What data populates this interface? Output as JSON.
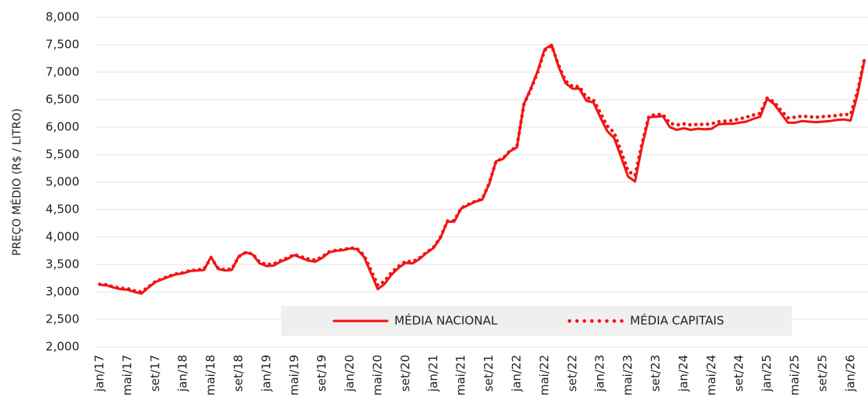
{
  "chart_data": {
    "type": "line",
    "ylabel": "PREÇO MÉDIO (R$ / LITRO)",
    "categories": [
      "jan/17",
      null,
      null,
      null,
      "mai/17",
      null,
      null,
      null,
      "set/17",
      null,
      null,
      null,
      "jan/18",
      null,
      null,
      null,
      "mai/18",
      null,
      null,
      null,
      "set/18",
      null,
      null,
      null,
      "jan/19",
      null,
      null,
      null,
      "mai/19",
      null,
      null,
      null,
      "set/19",
      null,
      null,
      null,
      "jan/20",
      null,
      null,
      null,
      "mai/20",
      null,
      null,
      null,
      "set/20",
      null,
      null,
      null,
      "jan/21",
      null,
      null,
      null,
      "mai/21",
      null,
      null,
      null,
      "set/21",
      null,
      null,
      null,
      "jan/22",
      null,
      null,
      null,
      "mai/22",
      null,
      null,
      null,
      "set/22",
      null,
      null,
      null,
      "jan/23",
      null,
      null,
      null,
      "mai/23",
      null,
      null,
      null,
      "set/23",
      null,
      null,
      null,
      "jan/24",
      null,
      null,
      null,
      "mai/24",
      null,
      null,
      null,
      "set/24",
      null,
      null,
      null,
      "jan/25",
      null,
      null,
      null,
      "mai/25",
      null,
      null,
      null,
      "set/25",
      null,
      null,
      null,
      "jan/26",
      null,
      null
    ],
    "series": [
      {
        "name": "MÉDIA NACIONAL",
        "color": "#f21414",
        "style": "solid",
        "values": [
          3130,
          3120,
          3080,
          3050,
          3040,
          3000,
          2970,
          3080,
          3180,
          3230,
          3280,
          3320,
          3340,
          3380,
          3390,
          3400,
          3640,
          3420,
          3390,
          3400,
          3650,
          3720,
          3680,
          3520,
          3470,
          3480,
          3550,
          3600,
          3670,
          3620,
          3570,
          3550,
          3620,
          3720,
          3750,
          3760,
          3790,
          3780,
          3640,
          3350,
          3050,
          3150,
          3320,
          3440,
          3530,
          3520,
          3600,
          3710,
          3800,
          3980,
          4280,
          4280,
          4520,
          4580,
          4640,
          4680,
          4960,
          5380,
          5420,
          5560,
          5630,
          6420,
          6700,
          7020,
          7420,
          7500,
          7100,
          6800,
          6700,
          6700,
          6480,
          6450,
          6180,
          5930,
          5800,
          5450,
          5100,
          5010,
          5650,
          6180,
          6190,
          6200,
          6000,
          5950,
          5980,
          5950,
          5970,
          5960,
          5970,
          6050,
          6060,
          6060,
          6080,
          6100,
          6150,
          6190,
          6520,
          6420,
          6250,
          6080,
          6080,
          6110,
          6100,
          6090,
          6100,
          6110,
          6130,
          6140,
          6120,
          6600,
          7220
        ]
      },
      {
        "name": "MÉDIA CAPITAIS",
        "color": "#f21414",
        "style": "dotted",
        "values": [
          3140,
          3130,
          3090,
          3070,
          3060,
          3020,
          3000,
          3090,
          3190,
          3240,
          3290,
          3330,
          3350,
          3390,
          3400,
          3420,
          3620,
          3440,
          3400,
          3420,
          3640,
          3720,
          3690,
          3540,
          3500,
          3510,
          3570,
          3620,
          3680,
          3640,
          3600,
          3580,
          3640,
          3730,
          3760,
          3770,
          3800,
          3790,
          3670,
          3400,
          3120,
          3200,
          3360,
          3470,
          3560,
          3550,
          3620,
          3720,
          3810,
          3990,
          4290,
          4300,
          4530,
          4590,
          4650,
          4690,
          4970,
          5380,
          5430,
          5570,
          5640,
          6410,
          6690,
          7000,
          7400,
          7480,
          7130,
          6840,
          6740,
          6740,
          6540,
          6500,
          6260,
          6020,
          5900,
          5550,
          5200,
          5120,
          5700,
          6200,
          6230,
          6230,
          6070,
          6040,
          6060,
          6040,
          6050,
          6050,
          6060,
          6100,
          6110,
          6120,
          6150,
          6180,
          6220,
          6250,
          6530,
          6460,
          6300,
          6170,
          6180,
          6200,
          6190,
          6180,
          6190,
          6200,
          6210,
          6230,
          6230,
          6650,
          7250
        ]
      }
    ],
    "ylim": [
      2000,
      8000
    ],
    "yticks": [
      {
        "value": 2000,
        "label": "2,000"
      },
      {
        "value": 2500,
        "label": "2,500"
      },
      {
        "value": 3000,
        "label": "3,000"
      },
      {
        "value": 3500,
        "label": "3,500"
      },
      {
        "value": 4000,
        "label": "4,000"
      },
      {
        "value": 4500,
        "label": "4,500"
      },
      {
        "value": 5000,
        "label": "5,000"
      },
      {
        "value": 5500,
        "label": "5,500"
      },
      {
        "value": 6000,
        "label": "6,000"
      },
      {
        "value": 6500,
        "label": "6,500"
      },
      {
        "value": 7000,
        "label": "7,000"
      },
      {
        "value": 7500,
        "label": "7,500"
      },
      {
        "value": 8000,
        "label": "8,000"
      }
    ],
    "grid": true,
    "legend": "bottom"
  }
}
